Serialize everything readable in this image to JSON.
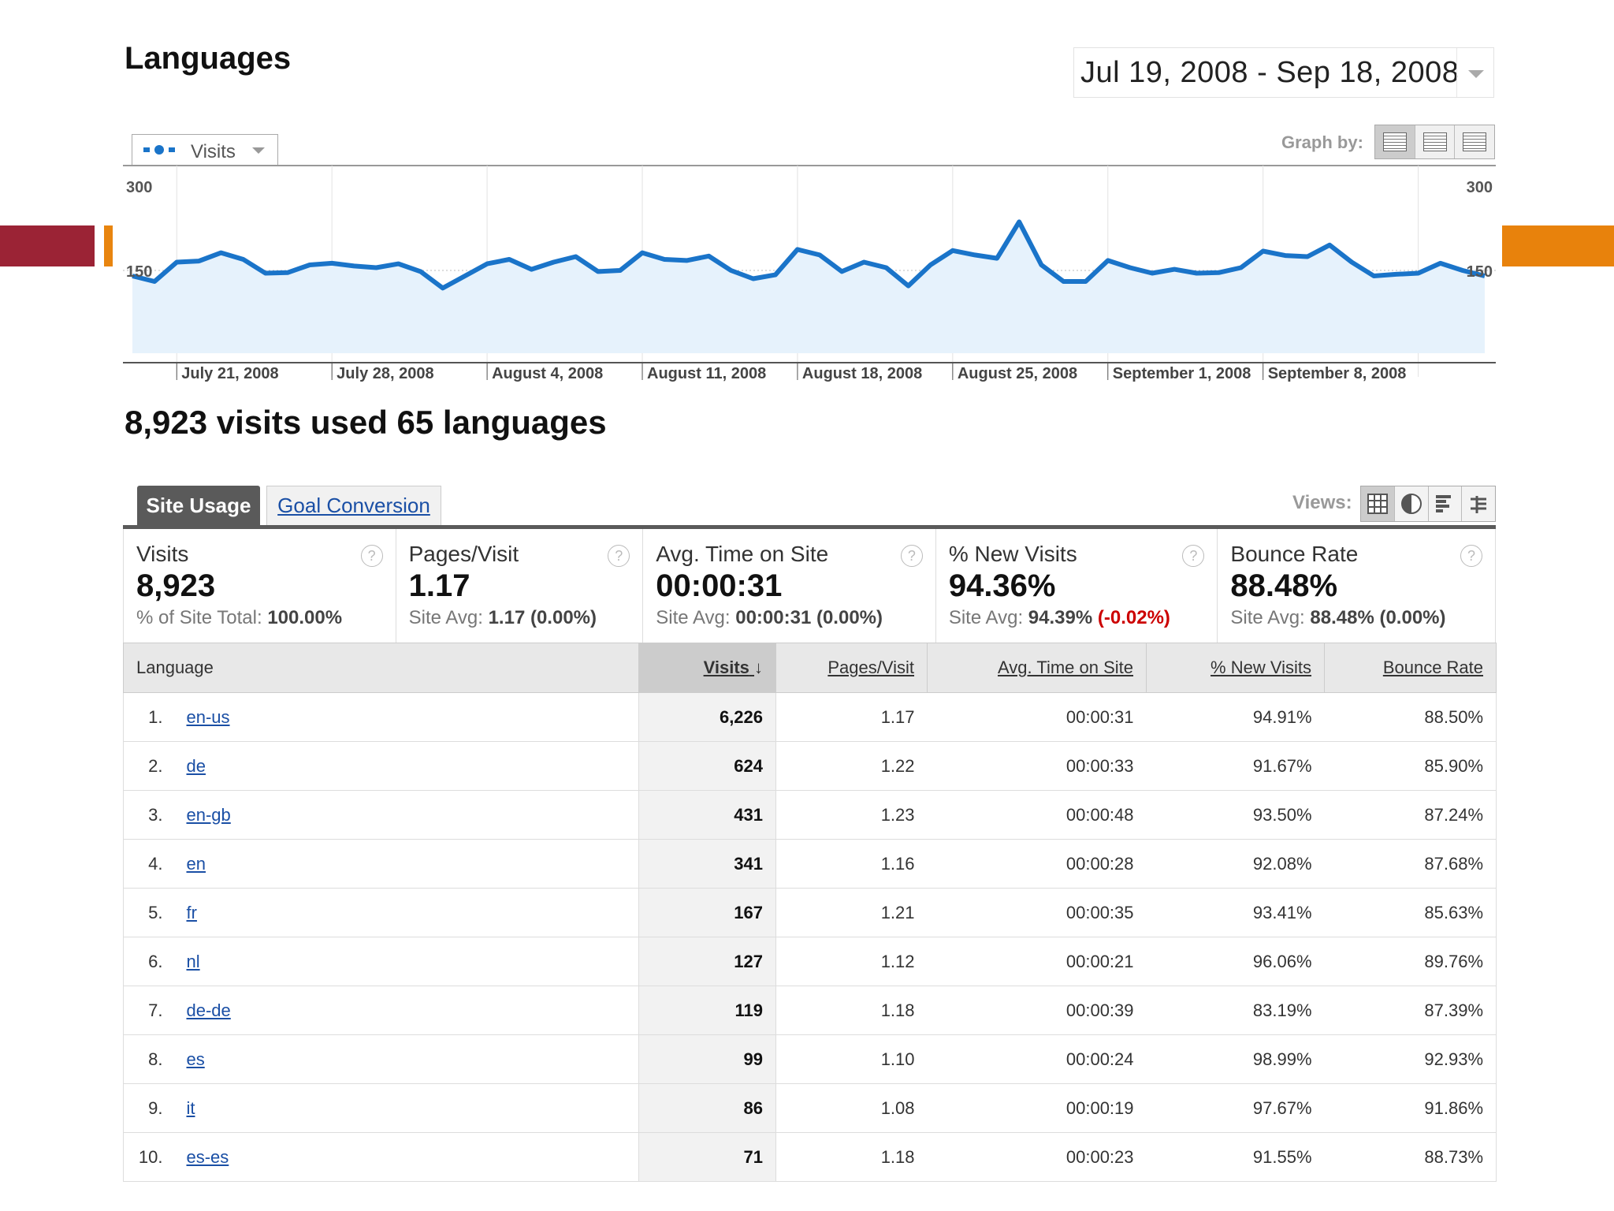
{
  "title": "Languages",
  "date_range": "Jul 19, 2008 - Sep 18, 2008",
  "metric_selector": {
    "label": "Visits"
  },
  "graph_by": {
    "label": "Graph by:"
  },
  "summary": "8,923 visits used 65 languages",
  "tabs": {
    "active": "Site Usage",
    "inactive": "Goal Conversion"
  },
  "views": {
    "label": "Views:"
  },
  "scorecards": [
    {
      "title": "Visits",
      "value": "8,923",
      "sub_prefix": "% of Site Total: ",
      "sub_bold": "100.00%",
      "sub_delta": ""
    },
    {
      "title": "Pages/Visit",
      "value": "1.17",
      "sub_prefix": "Site Avg: ",
      "sub_bold": "1.17 (0.00%)",
      "sub_delta": ""
    },
    {
      "title": "Avg. Time on Site",
      "value": "00:00:31",
      "sub_prefix": "Site Avg: ",
      "sub_bold": "00:00:31 (0.00%)",
      "sub_delta": ""
    },
    {
      "title": "% New Visits",
      "value": "94.36%",
      "sub_prefix": "Site Avg: ",
      "sub_bold": "94.39%",
      "sub_delta": "(-0.02%)"
    },
    {
      "title": "Bounce Rate",
      "value": "88.48%",
      "sub_prefix": "Site Avg: ",
      "sub_bold": "88.48% (0.00%)",
      "sub_delta": ""
    }
  ],
  "table": {
    "headers": [
      "Language",
      "Visits",
      "Pages/Visit",
      "Avg. Time on Site",
      "% New Visits",
      "Bounce Rate"
    ],
    "rows": [
      [
        "1.",
        "en-us",
        "6,226",
        "1.17",
        "00:00:31",
        "94.91%",
        "88.50%"
      ],
      [
        "2.",
        "de",
        "624",
        "1.22",
        "00:00:33",
        "91.67%",
        "85.90%"
      ],
      [
        "3.",
        "en-gb",
        "431",
        "1.23",
        "00:00:48",
        "93.50%",
        "87.24%"
      ],
      [
        "4.",
        "en",
        "341",
        "1.16",
        "00:00:28",
        "92.08%",
        "87.68%"
      ],
      [
        "5.",
        "fr",
        "167",
        "1.21",
        "00:00:35",
        "93.41%",
        "85.63%"
      ],
      [
        "6.",
        "nl",
        "127",
        "1.12",
        "00:00:21",
        "96.06%",
        "89.76%"
      ],
      [
        "7.",
        "de-de",
        "119",
        "1.18",
        "00:00:39",
        "83.19%",
        "87.39%"
      ],
      [
        "8.",
        "es",
        "99",
        "1.10",
        "00:00:24",
        "98.99%",
        "92.93%"
      ],
      [
        "9.",
        "it",
        "86",
        "1.08",
        "00:00:19",
        "97.67%",
        "91.86%"
      ],
      [
        "10.",
        "es-es",
        "71",
        "1.18",
        "00:00:23",
        "91.55%",
        "88.73%"
      ]
    ]
  },
  "chart_data": {
    "type": "area",
    "y_ticks": [
      "300",
      "150"
    ],
    "ylim": [
      0,
      300
    ],
    "x_tick_labels": [
      "July 21, 2008",
      "July 28, 2008",
      "August 4, 2008",
      "August 11, 2008",
      "August 18, 2008",
      "August 25, 2008",
      "September 1, 2008",
      "September 8, 2008"
    ],
    "series": [
      {
        "name": "Visits",
        "values": [
          140,
          130,
          165,
          167,
          182,
          170,
          145,
          146,
          160,
          163,
          158,
          155,
          162,
          148,
          118,
          140,
          162,
          170,
          152,
          165,
          175,
          148,
          150,
          182,
          170,
          168,
          176,
          150,
          135,
          142,
          188,
          178,
          148,
          165,
          155,
          122,
          160,
          186,
          178,
          172,
          238,
          160,
          130,
          130,
          168,
          155,
          145,
          152,
          145,
          146,
          155,
          185,
          177,
          175,
          196,
          165,
          140,
          143,
          145,
          163,
          150,
          140
        ]
      }
    ],
    "line_color": "#1a74c9",
    "fill_color": "#e6f2fc"
  }
}
